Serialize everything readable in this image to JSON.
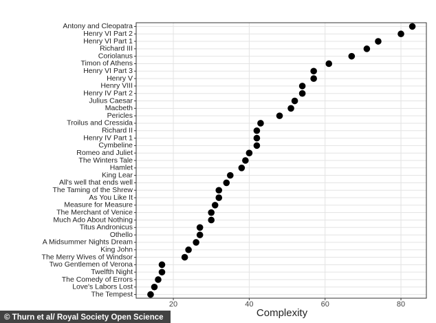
{
  "chart_data": {
    "type": "dot",
    "x_label": "Complexity",
    "credit": "© Thurn et al/ Royal Society Open Science",
    "categories": [
      "Antony and Cleopatra",
      "Henry VI Part 2",
      "Henry VI Part 1",
      "Richard III",
      "Coriolanus",
      "Timon of Athens",
      "Henry VI Part 3",
      "Henry V",
      "Henry VIII",
      "Henry IV Part 2",
      "Julius Caesar",
      "Macbeth",
      "Pericles",
      "Troilus and Cressida",
      "Richard II",
      "Henry IV Part 1",
      "Cymbeline",
      "Romeo and Juliet",
      "The Winters Tale",
      "Hamlet",
      "King Lear",
      "All's well that ends well",
      "The Taming of the Shrew",
      "As You Like It",
      "Measure for Measure",
      "The Merchant of Venice",
      "Much Ado About Nothing",
      "Titus Andronicus",
      "Othello",
      "A Midsummer Nights Dream",
      "King John",
      "The Merry Wives of Windsor",
      "Two Gentlemen of Verona",
      "Twelfth Night",
      "The Comedy of Errors",
      "Love's Labors Lost",
      "The Tempest"
    ],
    "values": [
      83,
      80,
      74,
      71,
      67,
      61,
      57,
      57,
      54,
      54,
      52,
      51,
      48,
      43,
      42,
      42,
      42,
      40,
      39,
      38,
      35,
      34,
      32,
      32,
      31,
      30,
      30,
      27,
      27,
      26,
      24,
      23,
      17,
      17,
      16,
      15,
      14
    ],
    "color": "#000000",
    "xlim": [
      10.2,
      86.7
    ],
    "xticks": [
      20,
      40,
      60,
      80
    ],
    "grid": true
  }
}
